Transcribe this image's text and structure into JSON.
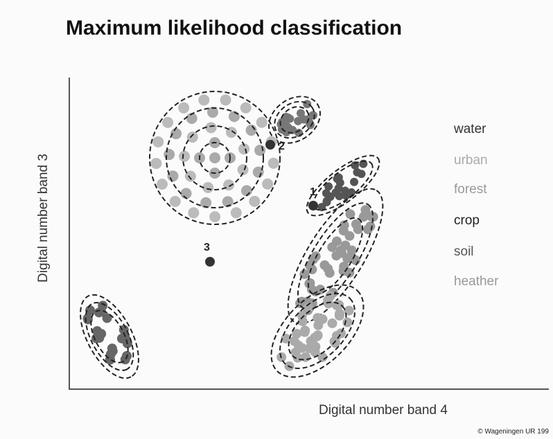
{
  "title": "Maximum likelihood classification",
  "axes": {
    "x_label": "Digital number band 4",
    "y_label": "Digital number band 3"
  },
  "legend": [
    "water",
    "urban",
    "forest",
    "crop",
    "soil",
    "heather"
  ],
  "points": [
    "1",
    "2",
    "3"
  ],
  "credit": "© Wageningen UR 199"
}
